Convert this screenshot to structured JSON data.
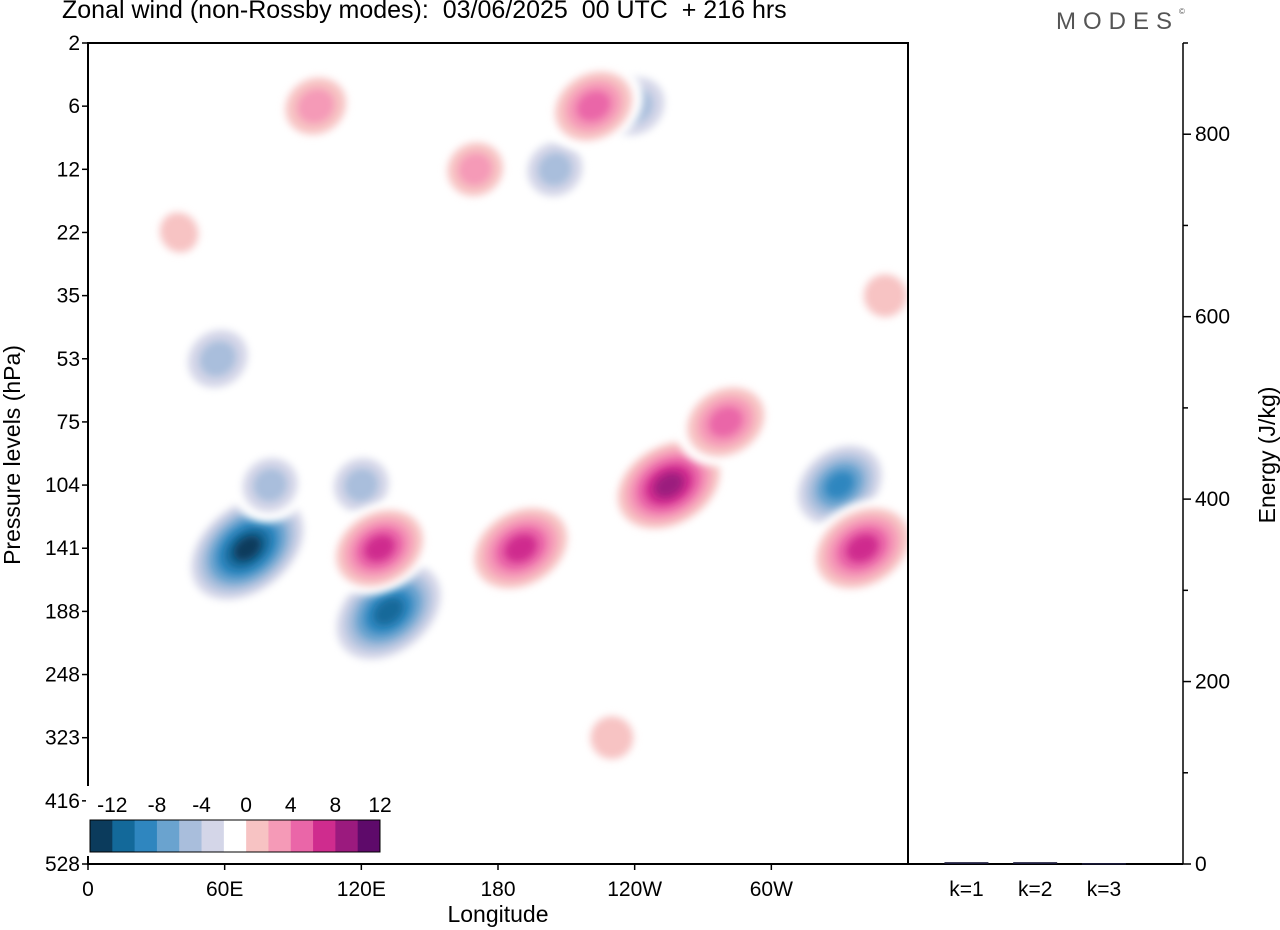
{
  "title": "Zonal wind (non-Rossby modes):  03/06/2025  00 UTC  + 216 hrs",
  "logo": {
    "text": "MODES",
    "mark": "©"
  },
  "chart_data": [
    {
      "type": "heatmap",
      "title": "Zonal wind (non-Rossby modes):  03/06/2025  00 UTC  + 216 hrs",
      "xlabel": "Longitude",
      "ylabel": "Pressure levels (hPa)",
      "x_ticks": [
        "0",
        "60E",
        "120E",
        "180",
        "120W",
        "60W"
      ],
      "x_tick_degrees": [
        0,
        60,
        120,
        180,
        240,
        300
      ],
      "x_range_degrees": [
        0,
        360
      ],
      "y_ticks": [
        "2",
        "6",
        "12",
        "22",
        "35",
        "53",
        "75",
        "104",
        "141",
        "188",
        "248",
        "323",
        "416",
        "528"
      ],
      "y_order": "top-to-bottom",
      "colorbar": {
        "labels": [
          "-12",
          "-8",
          "-4",
          "0",
          "4",
          "8",
          "12"
        ],
        "colors": [
          "#0b3b5c",
          "#13699a",
          "#2f86bf",
          "#6aa3cf",
          "#a9bedc",
          "#d4d6e8",
          "#ffffff",
          "#f7c3c3",
          "#f59ab7",
          "#ea66a8",
          "#cf2c8e",
          "#9b1a7e",
          "#5e0a6a"
        ],
        "levels": [
          -14,
          -12,
          -10,
          -8,
          -6,
          -4,
          -2,
          2,
          4,
          6,
          8,
          10,
          12,
          14
        ],
        "placement": "bottom-left inset"
      },
      "features": [
        {
          "lon": 70,
          "level": "141",
          "value": -13
        },
        {
          "lon": 132,
          "level": "188",
          "value": -12
        },
        {
          "lon": 330,
          "level": "104",
          "value": -9
        },
        {
          "lon": 57,
          "level": "53",
          "value": -6
        },
        {
          "lon": 120,
          "level": "104",
          "value": -5
        },
        {
          "lon": 240,
          "level": "6",
          "value": -6
        },
        {
          "lon": 205,
          "level": "12",
          "value": -5
        },
        {
          "lon": 80,
          "level": "104",
          "value": -5
        },
        {
          "lon": 255,
          "level": "104",
          "value": 11
        },
        {
          "lon": 280,
          "level": "75",
          "value": 8
        },
        {
          "lon": 340,
          "level": "141",
          "value": 10
        },
        {
          "lon": 128,
          "level": "141",
          "value": 9
        },
        {
          "lon": 190,
          "level": "141",
          "value": 10
        },
        {
          "lon": 222,
          "level": "6",
          "value": 8
        },
        {
          "lon": 100,
          "level": "6",
          "value": 6
        },
        {
          "lon": 170,
          "level": "12",
          "value": 5
        },
        {
          "lon": 40,
          "level": "22",
          "value": 3
        },
        {
          "lon": 230,
          "level": "323",
          "value": 4
        },
        {
          "lon": 350,
          "level": "35",
          "value": 4
        }
      ]
    },
    {
      "type": "bar",
      "ylabel": "Energy (J/kg)",
      "categories": [
        "k=1",
        "k=2",
        "k=3"
      ],
      "values": [
        2,
        2,
        1
      ],
      "ylim": [
        0,
        900
      ],
      "y_ticks": [
        "0",
        "200",
        "400",
        "600",
        "800"
      ],
      "axis_side": "right"
    }
  ]
}
